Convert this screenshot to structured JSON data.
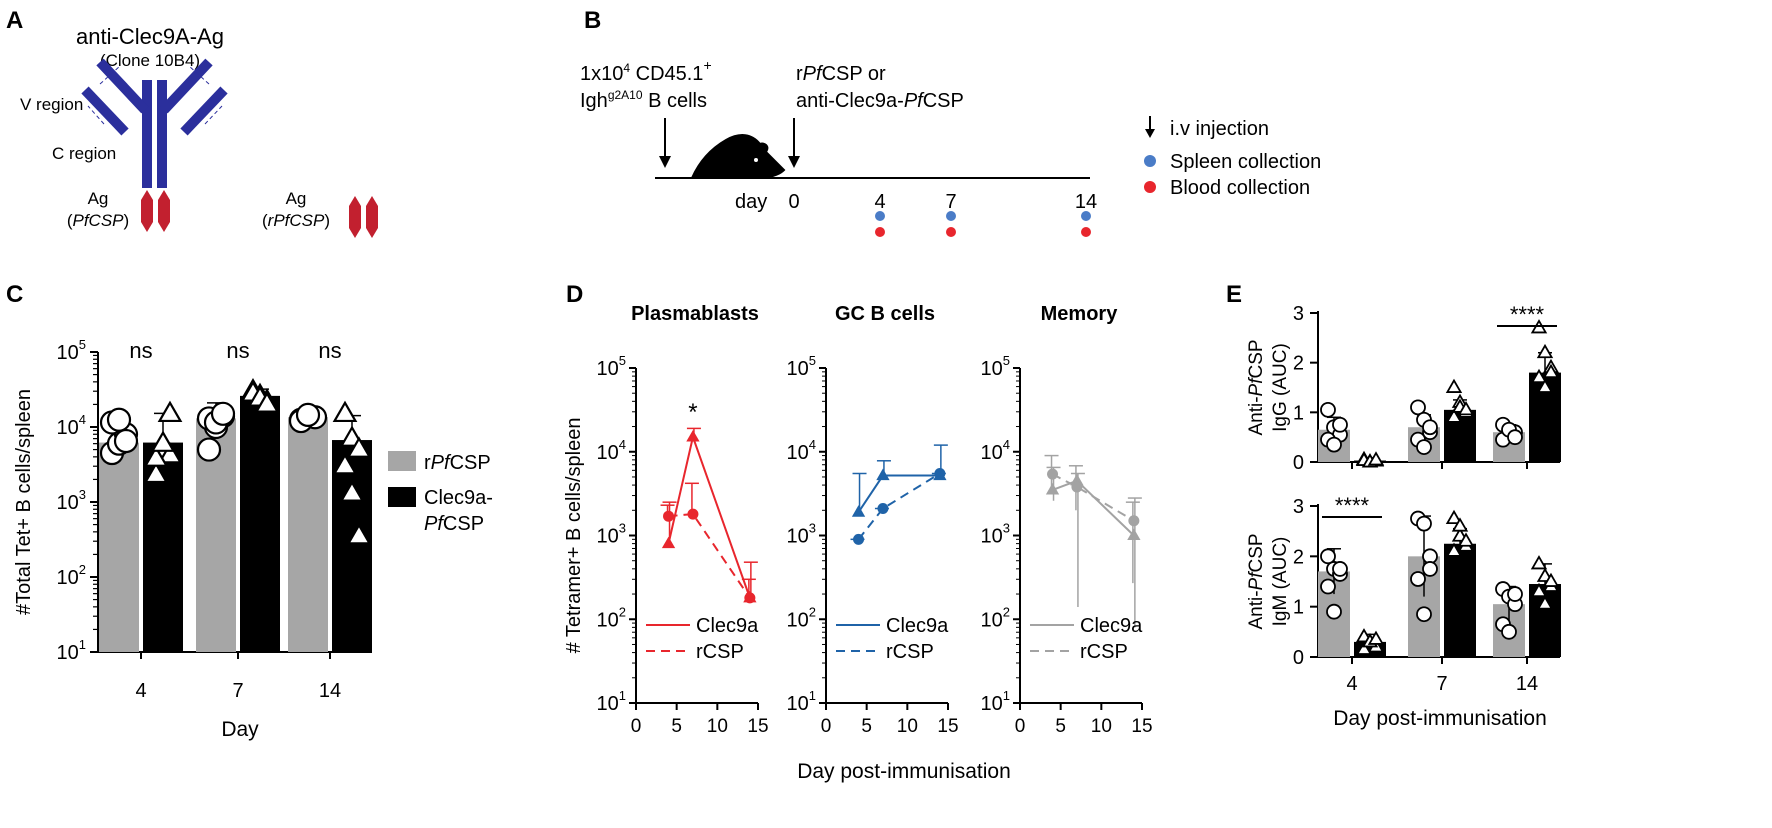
{
  "colors": {
    "grey_bar": "#a6a6a6",
    "black_bar": "#000000",
    "antibody_blue": "#2b2f9c",
    "antigen_red": "#c2202f",
    "clec_red": "#e8262d",
    "gc_blue": "#1f63a8",
    "memory_grey": "#a3a3a3",
    "spleen_dot": "#4a7cc7",
    "blood_dot": "#e8262d"
  },
  "panels": {
    "A": "A",
    "B": "B",
    "C": "C",
    "D": "D",
    "E": "E"
  },
  "panelA": {
    "antibody_title": "anti-Clec9A-Ag",
    "clone": "(Clone 10B4)",
    "v_region": "V region",
    "c_region": "C region",
    "ag_left": "Ag",
    "ag_left_sub": "PfCSP",
    "ag_right": "Ag",
    "ag_right_sub": "rPfCSP"
  },
  "panelB": {
    "cells_line1": "1x10",
    "cells_line1_sup": "4",
    "cells_line1_b": " CD45.1",
    "cells_line1_sup2": "+",
    "cells_line2": "Igh",
    "cells_line2_sup": "g2A10",
    "cells_line2_b": " B cells",
    "imm_line1": "rPfCSP or",
    "imm_line2": "anti-Clec9a-PfCSP",
    "day_label": "day",
    "days": [
      "0",
      "4",
      "7",
      "14"
    ],
    "legend": {
      "injection": "i.v injection",
      "spleen": "Spleen collection",
      "blood": "Blood collection"
    }
  },
  "chart_data": [
    {
      "panel": "C",
      "type": "bar",
      "categories": [
        "4",
        "7",
        "14"
      ],
      "series": [
        {
          "name": "rPfCSP",
          "values": [
            6200,
            13000,
            13500
          ],
          "errors": [
            4300,
            8000,
            2500
          ],
          "points": [
            [
              4500,
              6000,
              8000,
              11500,
              12500,
              6500
            ],
            [
              5000,
              10000,
              14000,
              13000,
              11500,
              15000
            ],
            [
              12500,
              14000,
              13500,
              12000,
              14500
            ]
          ]
        },
        {
          "name": "Clec9a-PfCSP",
          "values": [
            6200,
            26000,
            6700
          ],
          "errors": [
            9000,
            6000,
            7500
          ],
          "points": [
            [
              2300,
              5000,
              4200,
              3800,
              6000,
              15000
            ],
            [
              30000,
              26000,
              22000,
              28000,
              24000,
              20000
            ],
            [
              15000,
              7000,
              5000,
              3000,
              1300,
              350
            ]
          ]
        }
      ],
      "annotations": [
        "ns",
        "ns",
        "ns"
      ],
      "xlabel": "Day",
      "ylabel": "#Total Tet+ B cells/spleen",
      "yscale": "log",
      "ylim": [
        10,
        100000
      ],
      "yticks": [
        "10¹",
        "10²",
        "10³",
        "10⁴",
        "10⁵"
      ],
      "legend": [
        "rPfCSP",
        "Clec9a-PfCSP"
      ]
    },
    {
      "panel": "D",
      "type": "line",
      "ylabel": "# Tetramer+ B cells/spleen",
      "xlabel": "Day post-immunisation",
      "yscale": "log",
      "ylim": [
        10,
        100000
      ],
      "xlim": [
        0,
        15
      ],
      "xticks": [
        "0",
        "5",
        "10",
        "15"
      ],
      "yticks": [
        "10¹",
        "10²",
        "10³",
        "10⁴",
        "10⁵"
      ],
      "subplots": [
        {
          "title": "Plasmablasts",
          "color": "#e8262d",
          "annotation": "*",
          "series": [
            {
              "name": "Clec9a",
              "x": [
                4,
                7,
                14
              ],
              "y": [
                800,
                15000,
                180
              ],
              "err_hi": [
                2500,
                19000,
                480
              ],
              "err_lo": [
                800,
                15000,
                180
              ]
            },
            {
              "name": "rCSP",
              "x": [
                4,
                7,
                14
              ],
              "y": [
                1700,
                1800,
                180
              ],
              "err_hi": [
                2300,
                4200,
                300
              ],
              "err_lo": [
                1700,
                1800,
                180
              ]
            }
          ]
        },
        {
          "title": "GC B cells",
          "color": "#1f63a8",
          "annotation": "",
          "series": [
            {
              "name": "Clec9a",
              "x": [
                4,
                7,
                14
              ],
              "y": [
                1900,
                5200,
                5200
              ],
              "err_hi": [
                5500,
                7800,
                12000
              ],
              "err_lo": [
                1900,
                5200,
                5200
              ]
            },
            {
              "name": "rCSP",
              "x": [
                4,
                7,
                14
              ],
              "y": [
                900,
                2100,
                5500
              ],
              "err_hi": [
                900,
                2100,
                5500
              ],
              "err_lo": [
                900,
                2100,
                5500
              ]
            }
          ]
        },
        {
          "title": "Memory",
          "color": "#a3a3a3",
          "annotation": "",
          "series": [
            {
              "name": "Clec9a",
              "x": [
                4,
                7,
                14
              ],
              "y": [
                3500,
                4500,
                1000
              ],
              "err_hi": [
                6500,
                5500,
                2800
              ],
              "err_lo": [
                2600,
                140,
                80
              ]
            },
            {
              "name": "rCSP",
              "x": [
                4,
                7,
                14
              ],
              "y": [
                5400,
                3800,
                1500
              ],
              "err_hi": [
                9000,
                6800,
                2500
              ],
              "err_lo": [
                3500,
                2000,
                270
              ]
            }
          ]
        }
      ],
      "legend": [
        "Clec9a",
        "rCSP"
      ]
    },
    {
      "panel": "E",
      "type": "bar",
      "categories": [
        "4",
        "7",
        "14"
      ],
      "xlabel": "Day post-immunisation",
      "subplots": [
        {
          "ylabel_pre": "Anti-",
          "ylabel_it": "Pf",
          "ylabel_post": "CSP",
          "ylabel2": "IgG (AUC)",
          "ylim": [
            0,
            3
          ],
          "yticks": [
            "0",
            "1",
            "2",
            "3"
          ],
          "series": [
            {
              "name": "rPfCSP",
              "values": [
                0.65,
                0.7,
                0.6
              ],
              "errors": [
                0.25,
                0.25,
                0.15
              ],
              "points": [
                [
                  1.05,
                  0.7,
                  0.55,
                  0.45,
                  0.35,
                  0.75
                ],
                [
                  1.1,
                  0.85,
                  0.6,
                  0.45,
                  0.3,
                  0.7
                ],
                [
                  0.75,
                  0.55,
                  0.6,
                  0.45,
                  0.65,
                  0.5
                ]
              ]
            },
            {
              "name": "Clec9a-PfCSP",
              "values": [
                0.03,
                1.05,
                1.8
              ],
              "errors": [
                0.05,
                0.2,
                0.4
              ],
              "points": [
                [
                  0.05,
                  0.0,
                  0.02,
                  0.03,
                  0.0,
                  0.04
                ],
                [
                  1.5,
                  1.2,
                  1.0,
                  0.9,
                  1.1,
                  1.05
                ],
                [
                  2.7,
                  2.2,
                  1.9,
                  1.7,
                  1.5,
                  1.8
                ]
              ]
            }
          ],
          "significance": [
            {
              "category": "14",
              "label": "****"
            }
          ]
        },
        {
          "ylabel_pre": "Anti-",
          "ylabel_it": "Pf",
          "ylabel_post": "CSP",
          "ylabel2": "IgM (AUC)",
          "ylim": [
            0,
            3
          ],
          "yticks": [
            "0",
            "1",
            "2",
            "3"
          ],
          "series": [
            {
              "name": "rPfCSP",
              "values": [
                1.7,
                2.0,
                1.05
              ],
              "errors": [
                0.45,
                0.8,
                0.35
              ],
              "points": [
                [
                  2.0,
                  1.75,
                  1.65,
                  1.4,
                  0.9,
                  1.75
                ],
                [
                  2.75,
                  2.65,
                  2.0,
                  1.55,
                  0.85,
                  1.75
                ],
                [
                  1.35,
                  1.2,
                  1.05,
                  0.65,
                  0.5,
                  1.25
                ]
              ]
            },
            {
              "name": "Clec9a-PfCSP",
              "values": [
                0.3,
                2.25,
                1.45
              ],
              "errors": [
                0.15,
                0.3,
                0.4
              ],
              "points": [
                [
                  0.4,
                  0.3,
                  0.2,
                  0.15,
                  0.3,
                  0.35
                ],
                [
                  2.75,
                  2.4,
                  2.2,
                  2.1,
                  2.6,
                  2.3
                ],
                [
                  1.85,
                  1.6,
                  1.4,
                  1.3,
                  1.05,
                  1.5
                ]
              ]
            }
          ],
          "significance": [
            {
              "category": "4",
              "label": "****"
            }
          ]
        }
      ]
    }
  ]
}
